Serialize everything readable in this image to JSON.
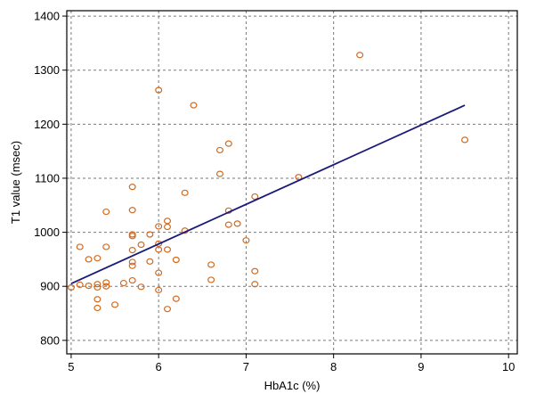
{
  "chart_data": {
    "type": "scatter",
    "title": "",
    "xlabel": "HbA1c (%)",
    "ylabel": "T1 value (msec)",
    "xlim": [
      4.95,
      10.1
    ],
    "ylim": [
      775,
      1410
    ],
    "xticks": [
      5,
      6,
      7,
      8,
      9,
      10
    ],
    "yticks": [
      800,
      900,
      1000,
      1100,
      1200,
      1300,
      1400
    ],
    "grid": true,
    "colors": {
      "points": "#d2691e",
      "line": "#1a1a7a",
      "grid": "#7a7a7a",
      "frame": "#000000"
    },
    "points": [
      [
        5.0,
        898
      ],
      [
        5.1,
        903
      ],
      [
        5.1,
        973
      ],
      [
        5.2,
        950
      ],
      [
        5.2,
        901
      ],
      [
        5.3,
        952
      ],
      [
        5.3,
        904
      ],
      [
        5.3,
        898
      ],
      [
        5.3,
        876
      ],
      [
        5.3,
        860
      ],
      [
        5.4,
        1038
      ],
      [
        5.4,
        973
      ],
      [
        5.4,
        907
      ],
      [
        5.4,
        900
      ],
      [
        5.5,
        866
      ],
      [
        5.6,
        906
      ],
      [
        5.7,
        1084
      ],
      [
        5.7,
        1041
      ],
      [
        5.7,
        996
      ],
      [
        5.7,
        993
      ],
      [
        5.7,
        967
      ],
      [
        5.7,
        945
      ],
      [
        5.7,
        938
      ],
      [
        5.7,
        911
      ],
      [
        5.8,
        977
      ],
      [
        5.8,
        899
      ],
      [
        5.9,
        996
      ],
      [
        5.9,
        946
      ],
      [
        6.0,
        1263
      ],
      [
        6.0,
        1011
      ],
      [
        6.0,
        979
      ],
      [
        6.0,
        968
      ],
      [
        6.0,
        925
      ],
      [
        6.0,
        893
      ],
      [
        6.1,
        1021
      ],
      [
        6.1,
        1010
      ],
      [
        6.1,
        968
      ],
      [
        6.1,
        858
      ],
      [
        6.2,
        949
      ],
      [
        6.2,
        877
      ],
      [
        6.3,
        1073
      ],
      [
        6.3,
        1003
      ],
      [
        6.4,
        1235
      ],
      [
        6.6,
        940
      ],
      [
        6.6,
        912
      ],
      [
        6.7,
        1152
      ],
      [
        6.7,
        1108
      ],
      [
        6.8,
        1164
      ],
      [
        6.8,
        1040
      ],
      [
        6.8,
        1014
      ],
      [
        6.9,
        1016
      ],
      [
        7.0,
        985
      ],
      [
        7.1,
        1066
      ],
      [
        7.1,
        928
      ],
      [
        7.1,
        904
      ],
      [
        7.6,
        1102
      ],
      [
        8.3,
        1328
      ],
      [
        9.5,
        1171
      ]
    ],
    "regression": {
      "x": [
        5.0,
        9.5
      ],
      "y": [
        905,
        1235
      ]
    }
  }
}
